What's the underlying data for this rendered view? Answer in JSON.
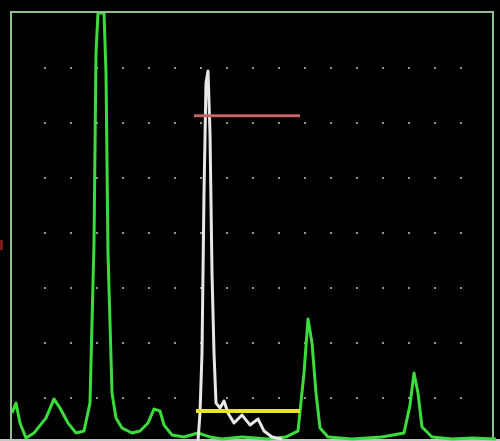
{
  "colors": {
    "background": "#000000",
    "grid_dot": "#8a9a8a",
    "frame": "#8fbf8f",
    "a_scan_trace": "#3cdc3c",
    "reference_trace": "#e8e8e8",
    "gate_a": "#c86464",
    "gate_b": "#e6e61e"
  },
  "display": {
    "mode": "A-scan",
    "grid": true
  },
  "gates": {
    "gate_a_level": 0.76,
    "gate_b_level": 0.07
  }
}
